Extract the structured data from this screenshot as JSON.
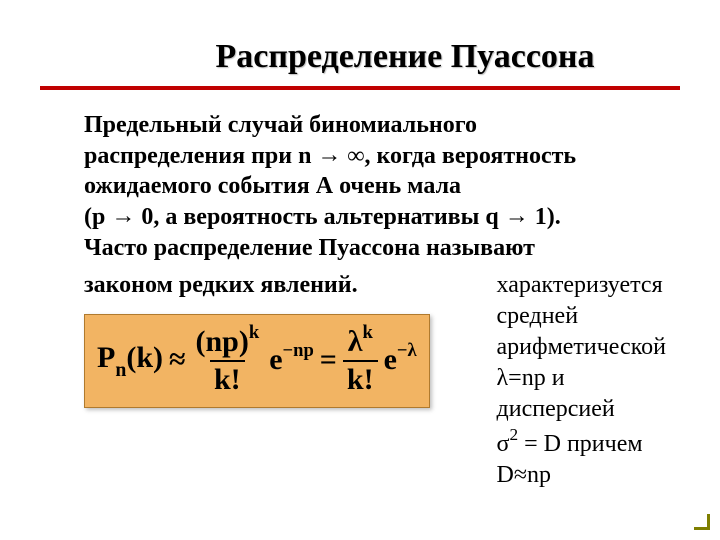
{
  "title": "Распределение Пуассона",
  "para_l1": "Предельный  случай биномиального",
  "para_l2_a": "распределения при n",
  "para_l2_b": "∞, когда вероятность",
  "para_l3": "ожидаемого события А очень мала",
  "para_l4_a": "(p",
  "para_l4_b": "0, а вероятность альтернативы q",
  "para_l4_c": "1).",
  "para_l5": "Часто распределение Пуассона называют",
  "para_l6": "законом редких явлений.",
  "arrow": "→",
  "formula": {
    "P": "P",
    "n": "n",
    "k_paren": "(k)",
    "approx": "≈",
    "np_paren": "(np)",
    "k": "k",
    "kfact": "k!",
    "e": "e",
    "neg_np": "−np",
    "eq": "=",
    "lambda": "λ",
    "neg_lambda": "−λ"
  },
  "side_l1": "характеризуется",
  "side_l2": "средней",
  "side_l3": "арифметической",
  "side_l4": "λ=np и дисперсией",
  "side_l5_a": "σ",
  "side_l5_sup": "2",
  "side_l5_b": " = D причем D≈np"
}
